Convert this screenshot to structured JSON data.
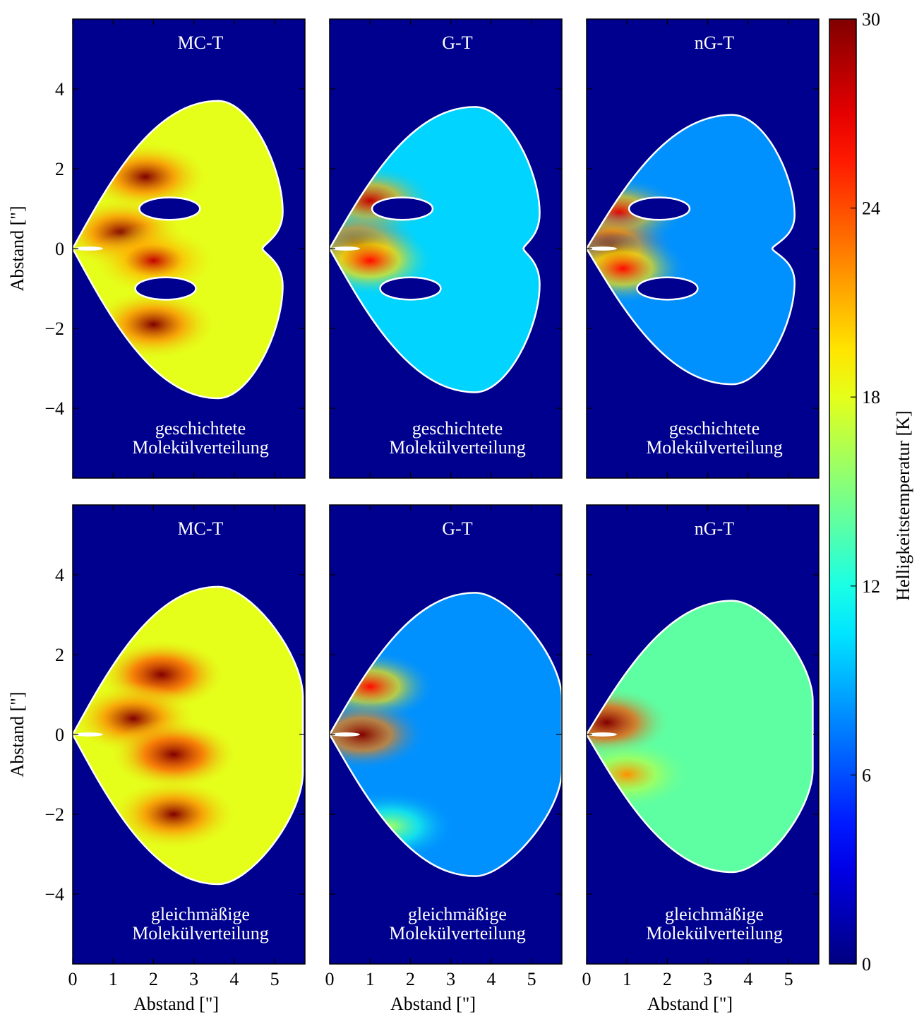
{
  "figure": {
    "ylabel": "Abstand [\"]",
    "xlabel": "Abstand [\"]",
    "colorbar_label": "Helligkeitstemperatur [K]",
    "colorbar_ticks": [
      "0",
      "6",
      "12",
      "18",
      "24",
      "30"
    ],
    "colormap": "jet",
    "background": "#00008f",
    "contour_color": "#ffffff"
  },
  "chart_data": [
    {
      "type": "heatmap",
      "row": 0,
      "col": 0,
      "title": "MC-T",
      "subtitle": [
        "geschichtete",
        "Molekülverteilung"
      ],
      "xlim": [
        0,
        5.75
      ],
      "ylim": [
        -5.75,
        5.75
      ],
      "xticks": [
        0,
        1,
        2,
        3,
        4,
        5
      ],
      "yticks": [
        -4,
        -2,
        0,
        2,
        4
      ],
      "xlabel": "",
      "ylabel": "Abstand [\"]",
      "extent": {
        "x_max": 5.2,
        "y_top": 3.7,
        "y_bottom": -3.75,
        "notch_x": 4.7
      },
      "lobes": [
        {
          "x": 1.8,
          "y": 1.8,
          "t": 30
        },
        {
          "x": 1.2,
          "y": 0.4,
          "t": 30
        },
        {
          "x": 2.0,
          "y": -0.3,
          "t": 28
        },
        {
          "x": 2.0,
          "y": -1.9,
          "t": 30
        }
      ],
      "base_t": 18,
      "holes": [
        {
          "x": 2.4,
          "y": 1.0
        },
        {
          "x": 2.3,
          "y": -1.0
        }
      ]
    },
    {
      "type": "heatmap",
      "row": 0,
      "col": 1,
      "title": "G-T",
      "subtitle": [
        "geschichtete",
        "Molekülverteilung"
      ],
      "xlim": [
        0,
        5.75
      ],
      "ylim": [
        -5.75,
        5.75
      ],
      "xticks": [
        0,
        1,
        2,
        3,
        4,
        5
      ],
      "yticks": [
        -4,
        -2,
        0,
        2,
        4
      ],
      "xlabel": "",
      "ylabel": "",
      "extent": {
        "x_max": 5.2,
        "y_top": 3.55,
        "y_bottom": -3.6,
        "notch_x": 4.8
      },
      "lobes": [
        {
          "x": 1.0,
          "y": 1.2,
          "t": 28
        },
        {
          "x": 0.7,
          "y": 0.1,
          "t": 30
        },
        {
          "x": 1.0,
          "y": -0.3,
          "t": 26
        }
      ],
      "base_t": 10,
      "holes": [
        {
          "x": 1.8,
          "y": 1.0
        },
        {
          "x": 2.0,
          "y": -1.0
        }
      ]
    },
    {
      "type": "heatmap",
      "row": 0,
      "col": 2,
      "title": "nG-T",
      "subtitle": [
        "geschichtete",
        "Molekülverteilung"
      ],
      "xlim": [
        0,
        5.75
      ],
      "ylim": [
        -5.75,
        5.75
      ],
      "xticks": [
        0,
        1,
        2,
        3,
        4,
        5
      ],
      "yticks": [
        -4,
        -2,
        0,
        2,
        4
      ],
      "xlabel": "",
      "ylabel": "",
      "extent": {
        "x_max": 5.15,
        "y_top": 3.35,
        "y_bottom": -3.4,
        "notch_x": 4.6
      },
      "lobes": [
        {
          "x": 0.8,
          "y": 0.9,
          "t": 27
        },
        {
          "x": 0.6,
          "y": 0.05,
          "t": 30
        },
        {
          "x": 0.9,
          "y": -0.5,
          "t": 26
        }
      ],
      "base_t": 8,
      "holes": [
        {
          "x": 1.8,
          "y": 1.0
        },
        {
          "x": 2.0,
          "y": -1.0
        }
      ]
    },
    {
      "type": "heatmap",
      "row": 1,
      "col": 0,
      "title": "MC-T",
      "subtitle": [
        "gleichmäßige",
        "Molekülverteilung"
      ],
      "xlim": [
        0,
        5.75
      ],
      "ylim": [
        -5.75,
        5.75
      ],
      "xticks": [
        0,
        1,
        2,
        3,
        4,
        5
      ],
      "yticks": [
        -4,
        -2,
        0,
        2,
        4
      ],
      "xlabel": "Abstand [\"]",
      "ylabel": "Abstand [\"]",
      "extent": {
        "x_max": 5.7,
        "y_top": 3.7,
        "y_bottom": -3.75,
        "notch_x": 5.7
      },
      "lobes": [
        {
          "x": 2.2,
          "y": 1.5,
          "t": 32
        },
        {
          "x": 1.5,
          "y": 0.4,
          "t": 30
        },
        {
          "x": 2.5,
          "y": -0.5,
          "t": 32
        },
        {
          "x": 2.5,
          "y": -2.0,
          "t": 30
        }
      ],
      "base_t": 18,
      "holes": []
    },
    {
      "type": "heatmap",
      "row": 1,
      "col": 1,
      "title": "G-T",
      "subtitle": [
        "gleichmäßige",
        "Molekülverteilung"
      ],
      "xlim": [
        0,
        5.75
      ],
      "ylim": [
        -5.75,
        5.75
      ],
      "xticks": [
        0,
        1,
        2,
        3,
        4,
        5
      ],
      "yticks": [
        -4,
        -2,
        0,
        2,
        4
      ],
      "xlabel": "Abstand [\"]",
      "ylabel": "",
      "extent": {
        "x_max": 5.75,
        "y_top": 3.55,
        "y_bottom": -3.55,
        "notch_x": 5.75
      },
      "lobes": [
        {
          "x": 1.0,
          "y": 1.2,
          "t": 26
        },
        {
          "x": 0.8,
          "y": 0.0,
          "t": 30
        },
        {
          "x": 1.5,
          "y": -2.3,
          "t": 16
        }
      ],
      "base_t": 8,
      "holes": []
    },
    {
      "type": "heatmap",
      "row": 1,
      "col": 2,
      "title": "nG-T",
      "subtitle": [
        "gleichmäßige",
        "Molekülverteilung"
      ],
      "xlim": [
        0,
        5.75
      ],
      "ylim": [
        -5.75,
        5.75
      ],
      "xticks": [
        0,
        1,
        2,
        3,
        4,
        5
      ],
      "yticks": [
        -4,
        -2,
        0,
        2,
        4
      ],
      "xlabel": "Abstand [\"]",
      "ylabel": "",
      "extent": {
        "x_max": 5.6,
        "y_top": 3.35,
        "y_bottom": -3.45,
        "notch_x": 5.6
      },
      "lobes": [
        {
          "x": 0.5,
          "y": 0.3,
          "t": 32
        },
        {
          "x": 1.0,
          "y": -1.0,
          "t": 22
        }
      ],
      "base_t": 14,
      "holes": []
    }
  ]
}
